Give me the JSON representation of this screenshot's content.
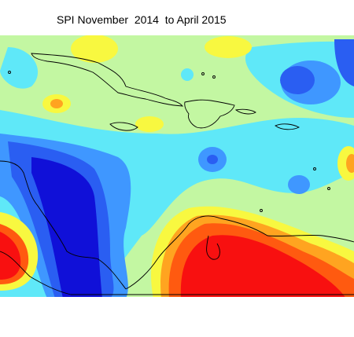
{
  "title": "SPI November  2014  to April 2015"
}
